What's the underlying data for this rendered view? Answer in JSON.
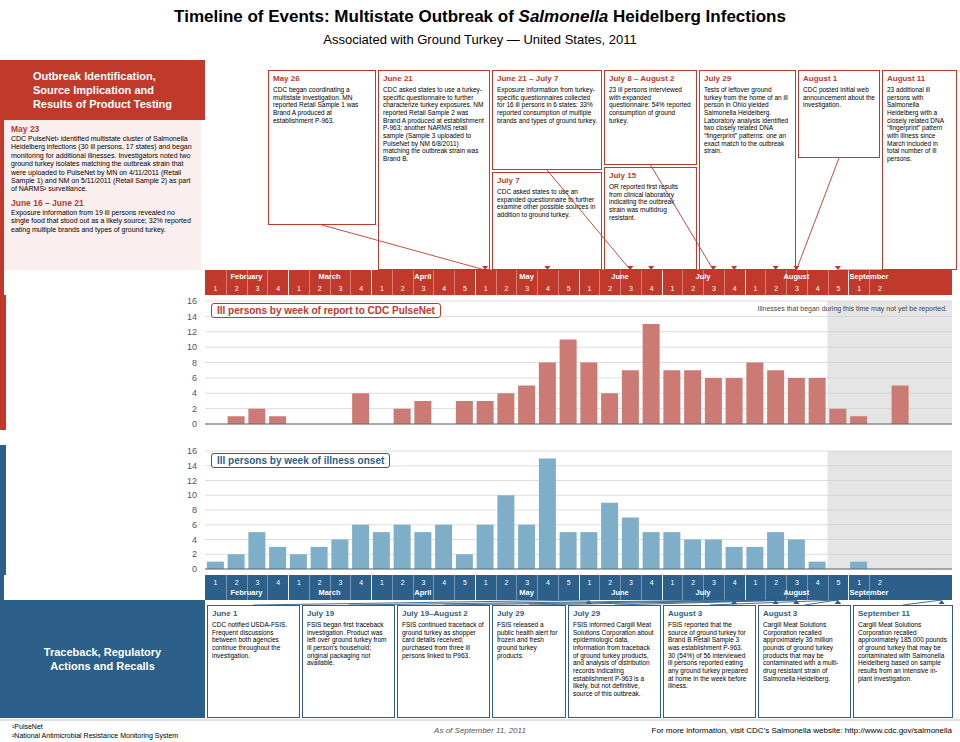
{
  "title": "Timeline of Events: Multistate Outbreak of Salmonella Heidelberg Infections",
  "title_italic": "Salmonella",
  "subtitle": "Associated with Ground Turkey — United States, 2011",
  "chart_data": [
    {
      "type": "bar",
      "title": "Ill persons by week of report to CDC PulseNet",
      "categories": [
        "1",
        "2",
        "3",
        "4",
        "1",
        "2",
        "3",
        "4",
        "1",
        "2",
        "3",
        "4",
        "5",
        "1",
        "2",
        "3",
        "4",
        "5",
        "1",
        "2",
        "3",
        "4",
        "1",
        "2",
        "3",
        "4",
        "1",
        "2",
        "3",
        "4",
        "5",
        "1",
        "2",
        null,
        null,
        null
      ],
      "values": [
        0,
        1,
        2,
        1,
        0,
        0,
        0,
        4,
        0,
        2,
        3,
        0,
        3,
        3,
        4,
        5,
        8,
        11,
        8,
        4,
        7,
        13,
        7,
        7,
        6,
        6,
        8,
        7,
        6,
        6,
        2,
        1,
        0,
        5,
        0,
        0
      ],
      "color": "#cc7b74",
      "ylim": [
        0,
        16
      ],
      "yticks": [
        0,
        2,
        4,
        6,
        8,
        10,
        12,
        14,
        16
      ],
      "grid": true,
      "shaded_region": {
        "from_index": 30,
        "color": "#d0d0d0",
        "label": "Illnesses that began during this time may not yet be reported."
      }
    },
    {
      "type": "bar",
      "title": "Ill persons by week of illness onset",
      "categories": [
        "1",
        "2",
        "3",
        "4",
        "1",
        "2",
        "3",
        "4",
        "1",
        "2",
        "3",
        "4",
        "5",
        "1",
        "2",
        "3",
        "4",
        "5",
        "1",
        "2",
        "3",
        "4",
        "1",
        "2",
        "3",
        "4",
        "1",
        "2",
        "3",
        "4",
        "5",
        "1",
        "2",
        null,
        null,
        null
      ],
      "values": [
        1,
        2,
        5,
        3,
        2,
        3,
        4,
        6,
        5,
        6,
        5,
        6,
        2,
        6,
        10,
        6,
        15,
        5,
        5,
        9,
        7,
        5,
        5,
        4,
        4,
        3,
        3,
        5,
        4,
        1,
        0,
        1,
        0,
        0,
        0,
        0
      ],
      "color": "#7faec8",
      "ylim": [
        0,
        16
      ],
      "yticks": [
        0,
        2,
        4,
        6,
        8,
        10,
        12,
        14,
        16
      ],
      "grid": true,
      "shaded_region": {
        "from_index": 30,
        "color": "#d0d0d0"
      }
    }
  ],
  "months": [
    "February",
    "March",
    "April",
    "May",
    "June",
    "July",
    "August",
    "September"
  ],
  "top_section": {
    "color": "#c0392b",
    "title": "Outbreak Identification,\nSource Implication and\nResults of Product Testing",
    "entries": [
      {
        "date": "May 23",
        "body": "CDC PulseNet¹ identified multistate cluster of Salmonella Heidelberg infections (30 ill persons, 17 states) and began monitoring for additional illnesses. Investigators noted two ground turkey isolates matching the outbreak strain that were uploaded to PulseNet by MN on 4/11/2011 (Retail Sample 1) and NM on 5/11/2011 (Retail Sample 2) as part of NARMS² surveillance."
      },
      {
        "date": "June 16 – June 21",
        "body": "Exposure information from 19 ill persons revealed no single food that stood out as a likely source; 32% reported eating multiple brands and types of ground turkey."
      }
    ],
    "annotations": [
      {
        "date": "May 26",
        "body": "CDC began coordinating a multistate investigation. MN reported Retail Sample 1 was Brand A produced at establishment P-963.",
        "week_index": 13
      },
      {
        "date": "June 21",
        "body": "CDC asked states to use a turkey-specific questionnaire to further characterize turkey exposures. NM reported Retail Sample 2 was Brand A produced at establishment P-963; another NARMS retail sample (Sample 3 uploaded to PulseNet by NM 6/8/2011) matching the outbreak strain was Brand B.",
        "week_index": 16
      },
      {
        "date": "June 21 – July 7",
        "body": "Exposure information from turkey-specific questionnaires collected for 16 ill persons in 6 states: 33% reported consumption of multiple brands and types of ground turkey.",
        "week_index": 20
      },
      {
        "date": "July 7",
        "body": "CDC asked states to use an expanded questionnaire to further examine other possible sources in addition to ground turkey.",
        "week_index": 21
      },
      {
        "date": "July 8 – August 2",
        "body": "23 ill persons interviewed with expanded questionnaire: 54% reported consumption of ground turkey.",
        "week_index": 24
      },
      {
        "date": "July 15",
        "body": "OR reported first results from clinical laboratory indicating the outbreak strain was multidrug resistant.",
        "week_index": 25
      },
      {
        "date": "July 29",
        "body": "Tests of leftover ground turkey from the home of an ill person in Ohio yielded Salmonella Heidelberg. Laboratory analysis identified two closely related DNA “fingerprint” patterns: one an exact match to the outbreak strain.",
        "week_index": 27
      },
      {
        "date": "August 1",
        "body": "CDC posted initial web announcement about the investigation.",
        "week_index": 28
      },
      {
        "date": "August 11",
        "body": "23 additional ill persons with Salmonella Heidelberg with a closely related DNA “fingerprint” pattern with illness since March included in total number of ill persons.",
        "week_index": 30
      }
    ]
  },
  "bottom_section": {
    "color": "#2c5f8a",
    "title": "Traceback, Regulatory\nActions and Recalls",
    "annotations": [
      {
        "date": "June 1",
        "body": "CDC notified USDA-FSIS. Frequent discussions between both agencies continue throughout the investigation.",
        "week_index": 18
      },
      {
        "date": "July 19",
        "body": "FSIS began first traceback investigation. Product was left over ground turkey from ill person’s household; original packaging not available.",
        "week_index": 25
      },
      {
        "date": "July 19–August 2",
        "body": "FSIS continued traceback of ground turkey as shopper card details received; purchased from three ill persons linked to P963.",
        "week_index": 27
      },
      {
        "date": "July 29",
        "body": "FSIS released a public health alert for frozen and fresh ground turkey products.",
        "week_index": 28
      },
      {
        "date": "July 29",
        "body": "FSIS informed Cargill Meat Solutions Corporation about epidemiologic data, information from traceback of ground turkey products, and analysis of distribution records indicating establishment P-963 is a likely, but not definitive, source of this outbreak.",
        "week_index": 28
      },
      {
        "date": "August 3",
        "body": "FSIS reported that the source of ground turkey for Brand B Retail Sample 3 was establishment P-963. 30 (54%) of 56 interviewed ill persons reported eating any ground turkey prepared at home in the week before illness.",
        "week_index": 30
      },
      {
        "date": "August 3",
        "body": "Cargill Meat Solutions Corporation recalled approximately 36 million pounds of ground turkey products that may be contaminated with a multi-drug resistant strain of Salmonella Heidelberg.",
        "week_index": 30
      },
      {
        "date": "September 11",
        "body": "Cargill Meat Solutions Corporation recalled approximately 185,000 pounds of ground turkey that may be contaminated with Salmonella Heidelberg based on sample results from an intensive in-plant investigation.",
        "week_index": 35
      }
    ]
  },
  "footnotes": [
    "¹PulseNet",
    "²National Antimicrobial Resistance Monitoring System"
  ],
  "date_note": "As of September 11, 2011",
  "web_note": "For more information, visit CDC’s Salmonella website: http://www.cdc.gov/salmonella"
}
